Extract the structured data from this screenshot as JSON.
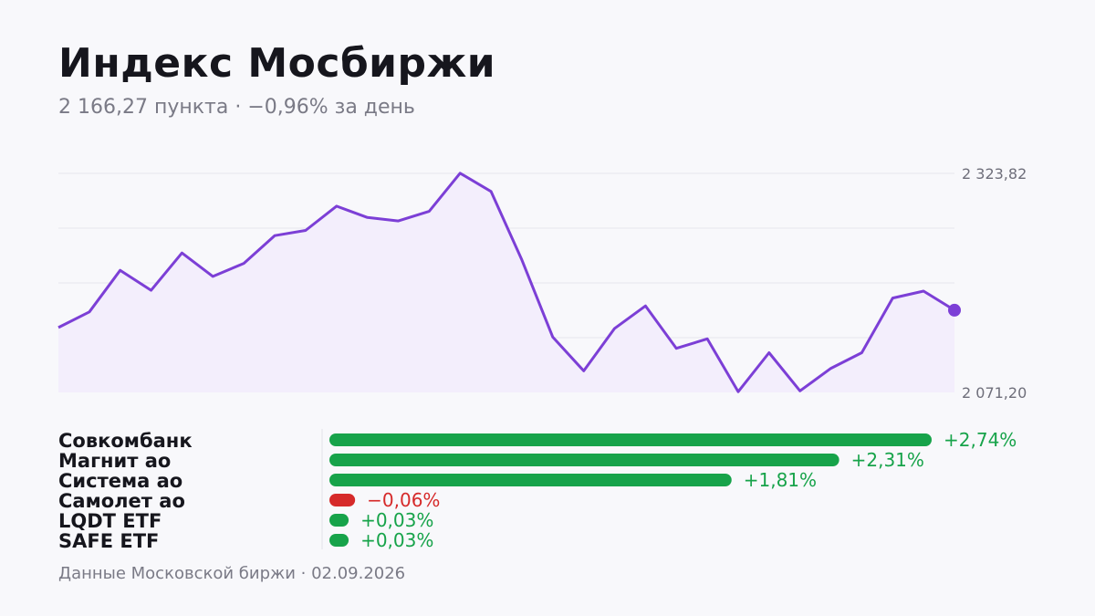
{
  "header": {
    "title": "Индекс Мосбиржи",
    "subtitle": "2 166,27 пункта · −0,96% за день"
  },
  "footer": {
    "text": "Данные Московской биржи · 02.09.2026"
  },
  "colors": {
    "line": "#7c3fd6",
    "area": "#f3eefc",
    "positive": "#17a34a",
    "negative": "#d62a2a",
    "grid": "#e6e6ec"
  },
  "chart_data": [
    {
      "type": "area",
      "ylim": [
        2071.2,
        2323.82
      ],
      "y_ticks": [
        {
          "value": 2323.82,
          "label": "2 323,82"
        },
        {
          "value": 2071.2,
          "label": "2 071,20"
        }
      ],
      "values": [
        2146,
        2164,
        2212,
        2189,
        2232,
        2205,
        2220,
        2252,
        2258,
        2286,
        2273,
        2269,
        2280,
        2324,
        2303,
        2224,
        2135,
        2096,
        2145,
        2171,
        2122,
        2133,
        2072,
        2117,
        2073,
        2099,
        2117,
        2180,
        2188,
        2166
      ],
      "last_point_marker": true,
      "grid": true
    },
    {
      "type": "bar",
      "orientation": "horizontal",
      "categories": [
        "Совкомбанк",
        "Магнит ао",
        "Система ао",
        "Самолет ао",
        "LQDT ETF",
        "SAFE ETF"
      ],
      "values": [
        2.74,
        2.31,
        1.81,
        -0.06,
        0.03,
        0.03
      ],
      "labels": [
        "+2,74%",
        "+2,31%",
        "+1,81%",
        "−0,06%",
        "+0,03%",
        "+0,03%"
      ]
    }
  ]
}
